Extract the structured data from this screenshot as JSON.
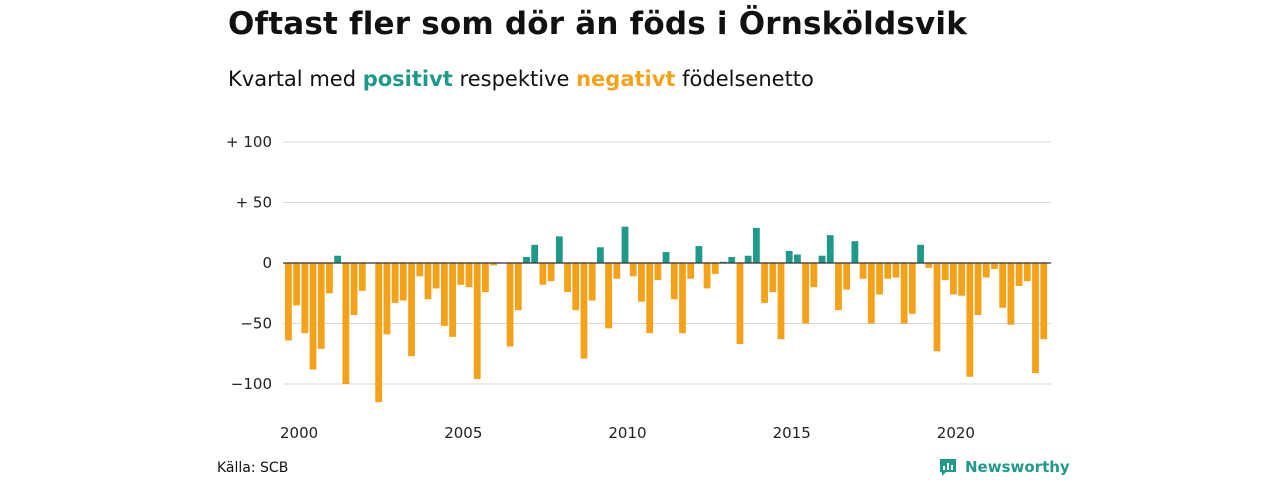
{
  "title": "Oftast fler som dör än föds i Örnsköldsvik",
  "subtitle": {
    "prefix": "Kvartal med",
    "positive_word": "positivt",
    "middle": "respektive",
    "negative_word": "negativt",
    "suffix": "födelsenetto"
  },
  "colors": {
    "positive": "#1f9a8a",
    "negative": "#f5a21b",
    "grid": "#d9d9d9",
    "zero_line": "#333333",
    "brand": "#1f9a8a"
  },
  "source": "Källa: SCB",
  "brand": {
    "name": "Newsworthy",
    "icon": "newsworthy-logo-icon"
  },
  "chart_data": {
    "type": "bar",
    "x_start": "2000 Q1",
    "frequency": "quarterly",
    "ylim": [
      -115,
      100
    ],
    "grid": true,
    "ytick_values": [
      100,
      50,
      0,
      -50,
      -100
    ],
    "ytick_labels": [
      "+ 100",
      "+  50",
      "0",
      "−50",
      "−100"
    ],
    "xtick_labels": [
      "2000",
      "2005",
      "2010",
      "2015",
      "2020"
    ],
    "xtick_years": [
      2000,
      2005,
      2010,
      2015,
      2020
    ],
    "values": [
      -64,
      -35,
      -58,
      -88,
      -71,
      -25,
      6,
      -100,
      -43,
      -23,
      0,
      -115,
      -59,
      -33,
      -31,
      -77,
      -11,
      -30,
      -21,
      -52,
      -61,
      -18,
      -20,
      -96,
      -24,
      -2,
      0,
      -69,
      -39,
      5,
      15,
      -18,
      -15,
      22,
      -24,
      -39,
      -79,
      -31,
      13,
      -54,
      -13,
      30,
      -11,
      -32,
      -58,
      -14,
      9,
      -30,
      -58,
      -13,
      14,
      -21,
      -9,
      1,
      5,
      -67,
      6,
      29,
      -33,
      -24,
      -63,
      10,
      7,
      -50,
      -20,
      6,
      23,
      -39,
      -22,
      18,
      -13,
      -50,
      -26,
      -13,
      -12,
      -50,
      -42,
      15,
      -4,
      -73,
      -14,
      -26,
      -27,
      -94,
      -43,
      -12,
      -5,
      -37,
      -51,
      -19,
      -15,
      -91,
      -63
    ]
  }
}
